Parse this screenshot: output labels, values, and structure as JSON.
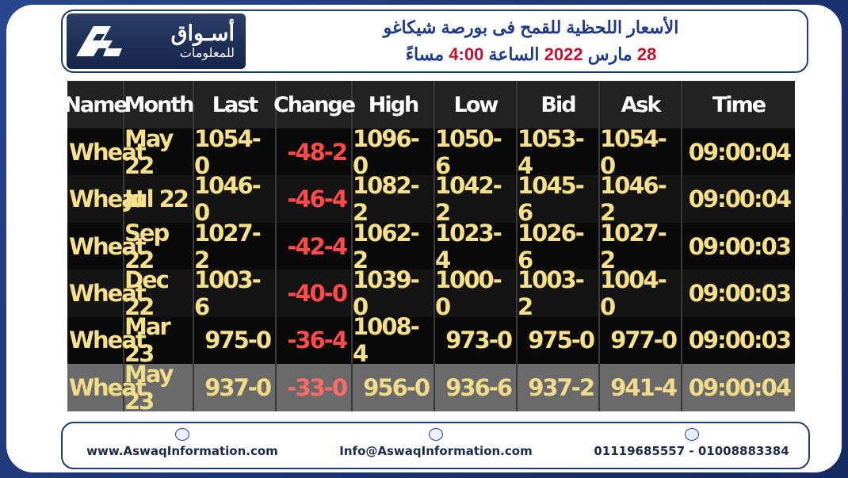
{
  "header": {
    "logo_line1": "أسـواق",
    "logo_line2": "للمعلومات",
    "title_line1": "الأسعار اللحظية للقمح فى بورصة شيكاغو",
    "title_day": "28",
    "title_month": "مارس",
    "title_year": "2022",
    "title_at": "الساعة",
    "title_time": "4:00",
    "title_suffix": "مساءً",
    "accent_color": "#1f3a88",
    "highlight_color": "#c8102e"
  },
  "table": {
    "columns": [
      "Name",
      "Month",
      "Last",
      "Change",
      "High",
      "Low",
      "Bid",
      "Ask",
      "Time"
    ],
    "rows": [
      [
        "Wheat",
        "May 22",
        "1054-0",
        "-48-2",
        "1096-0",
        "1050-6",
        "1053-4",
        "1054-0",
        "09:00:04"
      ],
      [
        "Wheat",
        "Jul 22",
        "1046-0",
        "-46-4",
        "1082-2",
        "1042-2",
        "1045-6",
        "1046-2",
        "09:00:04"
      ],
      [
        "Wheat",
        "Sep 22",
        "1027-2",
        "-42-4",
        "1062-2",
        "1023-4",
        "1026-6",
        "1027-2",
        "09:00:03"
      ],
      [
        "Wheat",
        "Dec 22",
        "1003-6",
        "-40-0",
        "1039-0",
        "1000-0",
        "1003-2",
        "1004-0",
        "09:00:03"
      ],
      [
        "Wheat",
        "Mar 23",
        "975-0",
        "-36-4",
        "1008-4",
        "973-0",
        "975-0",
        "977-0",
        "09:00:03"
      ],
      [
        "Wheat",
        "May 23",
        "937-0",
        "-33-0",
        "956-0",
        "936-6",
        "937-2",
        "941-4",
        "09:00:04"
      ]
    ]
  },
  "footer": {
    "website": "www.AswaqInformation.com",
    "email": "Info@AswaqInformation.com",
    "phones": "01119685557 - 01008883384",
    "website_icon": "globe-icon",
    "email_icon": "mail-icon",
    "phone_icon": "phone-icon"
  }
}
